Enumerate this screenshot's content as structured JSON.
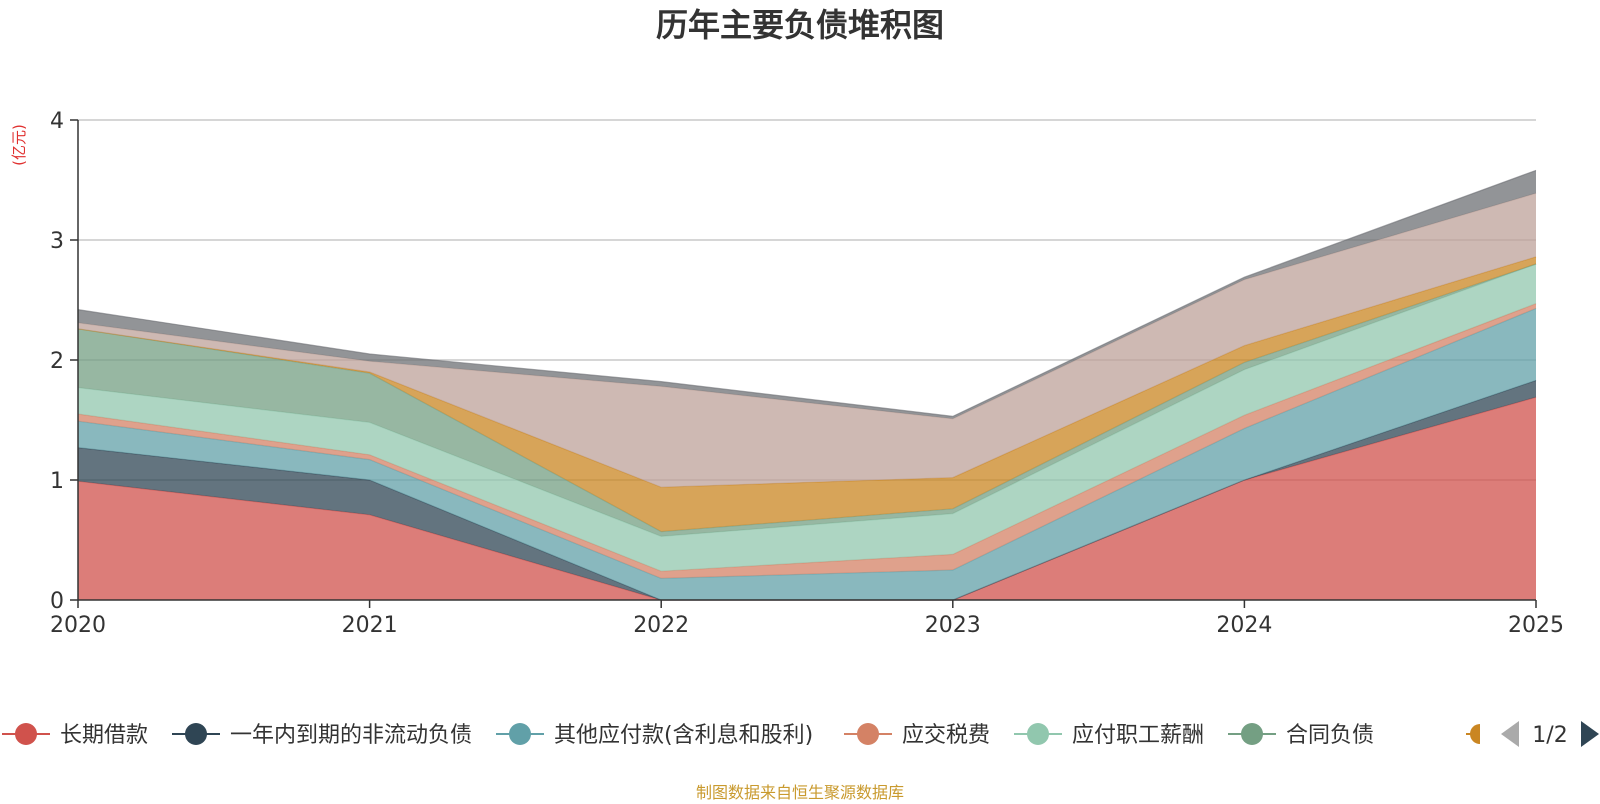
{
  "chart_data": {
    "type": "area",
    "stacked": true,
    "title": "历年主要负债堆积图",
    "ylabel": "(亿元)",
    "xlabel": "",
    "x": [
      "2020",
      "2021",
      "2022",
      "2023",
      "2024",
      "2025"
    ],
    "ylim": [
      0,
      4
    ],
    "yticks": [
      "0",
      "1",
      "2",
      "3",
      "4"
    ],
    "grid": true,
    "series": [
      {
        "name": "长期借款",
        "color": "#d0524c",
        "values": [
          0.99,
          0.71,
          0.0,
          0.0,
          1.0,
          1.69
        ]
      },
      {
        "name": "一年内到期的非流动负债",
        "color": "#2f4554",
        "values": [
          0.28,
          0.29,
          0.0,
          0.0,
          0.0,
          0.14
        ]
      },
      {
        "name": "其他应付款(含利息和股利)",
        "color": "#61a0a8",
        "values": [
          0.22,
          0.17,
          0.18,
          0.25,
          0.43,
          0.6
        ]
      },
      {
        "name": "应交税费",
        "color": "#d48265",
        "values": [
          0.06,
          0.04,
          0.06,
          0.13,
          0.11,
          0.04
        ]
      },
      {
        "name": "应付职工薪酬",
        "color": "#91c7ae",
        "values": [
          0.22,
          0.27,
          0.29,
          0.34,
          0.38,
          0.33
        ]
      },
      {
        "name": "合同负债",
        "color": "#749f83",
        "values": [
          0.49,
          0.41,
          0.04,
          0.04,
          0.06,
          0.0
        ]
      },
      {
        "name": "",
        "color": "#ca8622",
        "values": [
          0.0,
          0.01,
          0.37,
          0.26,
          0.14,
          0.06
        ]
      },
      {
        "name": "",
        "color": "#bda29a",
        "values": [
          0.05,
          0.09,
          0.84,
          0.49,
          0.55,
          0.53
        ]
      },
      {
        "name": "",
        "color": "#6e7074",
        "values": [
          0.11,
          0.06,
          0.04,
          0.02,
          0.02,
          0.19
        ]
      }
    ],
    "legend": {
      "placement": "bottom",
      "page": "1/2",
      "items": [
        "长期借款",
        "一年内到期的非流动负债",
        "其他应付款(含利息和股利)",
        "应交税费",
        "应付职工薪酬",
        "合同负债"
      ],
      "partial_item_color": "#ca8622"
    }
  },
  "footer": {
    "source": "制图数据来自恒生聚源数据库"
  },
  "colors": {
    "grid": "#c8c8c8",
    "axis": "#333333",
    "ylabel": "#e0302f",
    "footer": "#c99a2e",
    "pager_active": "#2f4554",
    "pager_inactive": "#aaaaaa"
  }
}
